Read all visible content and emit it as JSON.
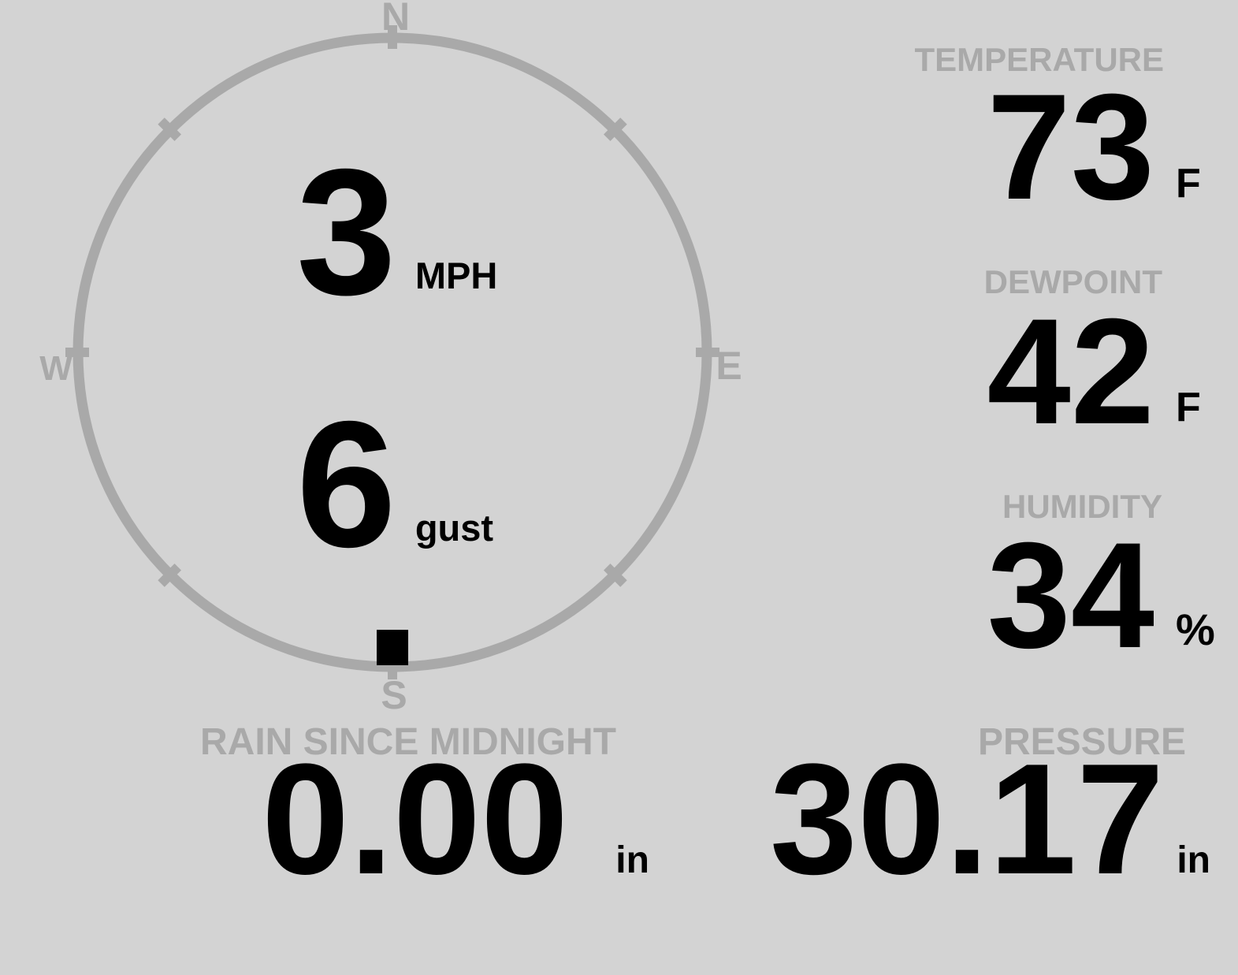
{
  "colors": {
    "background": "#D3D3D3",
    "muted": "#A9A9A9",
    "foreground": "#000000"
  },
  "compass": {
    "cardinals": {
      "north": "N",
      "east": "E",
      "south": "S",
      "west": "W"
    },
    "wind_speed": {
      "value": "3",
      "unit": "MPH"
    },
    "wind_gust": {
      "value": "6",
      "unit": "gust"
    },
    "wind_direction_deg": 180
  },
  "metrics": {
    "temperature": {
      "label": "TEMPERATURE",
      "value": "73",
      "unit": "F"
    },
    "dewpoint": {
      "label": "DEWPOINT",
      "value": "42",
      "unit": "F"
    },
    "humidity": {
      "label": "HUMIDITY",
      "value": "34",
      "unit": "%"
    },
    "rain_since_midnight": {
      "label": "RAIN SINCE MIDNIGHT",
      "value": "0.00",
      "unit": "in"
    },
    "pressure": {
      "label": "PRESSURE",
      "value": "30.17",
      "unit": "in"
    }
  }
}
